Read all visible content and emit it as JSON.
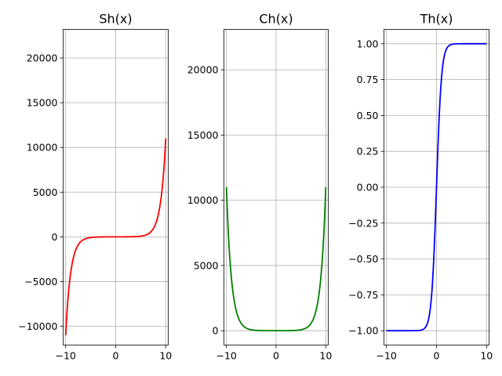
{
  "chart_data": [
    {
      "type": "line",
      "title": "Sh(x)",
      "function": "sinh",
      "color": "#ff0000",
      "xlim": [
        -10.5,
        10.5
      ],
      "ylim": [
        -12100,
        23200
      ],
      "xticks": [
        -10,
        0,
        10
      ],
      "yticks": [
        -10000,
        -5000,
        0,
        5000,
        10000,
        15000,
        20000
      ],
      "xtick_labels": [
        "−10",
        "0",
        "10"
      ],
      "ytick_labels": [
        "−10000",
        "−5000",
        "0",
        "5000",
        "10000",
        "15000",
        "20000"
      ],
      "x": [
        -10,
        -9,
        -8,
        -7,
        -6,
        -5,
        -4,
        -3,
        -2,
        -1,
        0,
        1,
        2,
        3,
        4,
        5,
        6,
        7,
        8,
        9,
        10
      ],
      "y": [
        -11013.2,
        -4051.5,
        -1490.5,
        -548.3,
        -201.7,
        -74.2,
        -27.3,
        -10.0,
        -3.6,
        -1.2,
        0,
        1.2,
        3.6,
        10.0,
        27.3,
        74.2,
        201.7,
        548.3,
        1490.5,
        4051.5,
        11013.2
      ],
      "grid": true
    },
    {
      "type": "line",
      "title": "Ch(x)",
      "function": "cosh",
      "color": "#008000",
      "xlim": [
        -10.5,
        10.5
      ],
      "ylim": [
        -1100,
        23100
      ],
      "xticks": [
        -10,
        0,
        10
      ],
      "yticks": [
        0,
        5000,
        10000,
        15000,
        20000
      ],
      "xtick_labels": [
        "−10",
        "0",
        "10"
      ],
      "ytick_labels": [
        "0",
        "5000",
        "10000",
        "15000",
        "20000"
      ],
      "x": [
        -10,
        -9,
        -8,
        -7,
        -6,
        -5,
        -4,
        -3,
        -2,
        -1,
        0,
        1,
        2,
        3,
        4,
        5,
        6,
        7,
        8,
        9,
        10
      ],
      "y": [
        11013.2,
        4051.5,
        1490.5,
        548.3,
        201.7,
        74.2,
        27.3,
        10.1,
        3.8,
        1.5,
        1,
        1.5,
        3.8,
        10.1,
        27.3,
        74.2,
        201.7,
        548.3,
        1490.5,
        4051.5,
        11013.2
      ],
      "grid": true
    },
    {
      "type": "line",
      "title": "Th(x)",
      "function": "tanh",
      "color": "#0000ff",
      "xlim": [
        -10.5,
        10.5
      ],
      "ylim": [
        -1.1,
        1.1
      ],
      "xticks": [
        -10,
        0,
        10
      ],
      "yticks": [
        -1.0,
        -0.75,
        -0.5,
        -0.25,
        0.0,
        0.25,
        0.5,
        0.75,
        1.0
      ],
      "xtick_labels": [
        "−10",
        "0",
        "10"
      ],
      "ytick_labels": [
        "−1.00",
        "−0.75",
        "−0.50",
        "−0.25",
        "0.00",
        "0.25",
        "0.50",
        "0.75",
        "1.00"
      ],
      "x": [
        -10,
        -5,
        -3,
        -2,
        -1,
        0,
        1,
        2,
        3,
        5,
        10
      ],
      "y": [
        -1.0,
        -0.9999,
        -0.9951,
        -0.964,
        -0.7616,
        0,
        0.7616,
        0.964,
        0.9951,
        0.9999,
        1.0
      ],
      "grid": true
    }
  ]
}
